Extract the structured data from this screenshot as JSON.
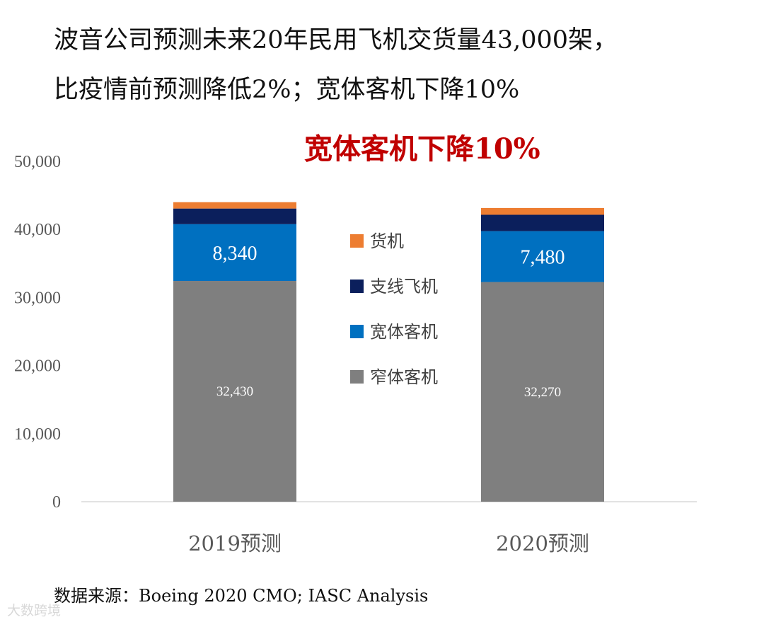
{
  "headline": {
    "line1": "波音公司预测未来20年民用飞机交货量43,000架，",
    "line2": "比疫情前预测降低2%；宽体客机下降10%"
  },
  "source": "数据来源：Boeing 2020 CMO; IASC Analysis",
  "watermark": "大数跨境",
  "chart_data": {
    "type": "bar",
    "stacked": true,
    "annotation": "宽体客机下降10%",
    "categories": [
      "2019预测",
      "2020预测"
    ],
    "ylim": [
      0,
      50000
    ],
    "yticks": [
      0,
      10000,
      20000,
      30000,
      40000,
      50000
    ],
    "ytick_labels": [
      "0",
      "10,000",
      "20,000",
      "30,000",
      "40,000",
      "50,000"
    ],
    "grid": false,
    "legend_position": "center",
    "series": [
      {
        "name": "窄体客机",
        "values": [
          32430,
          32270
        ],
        "labels": [
          "32,430",
          "32,270"
        ],
        "color": "#7f7f7f",
        "label_color": "#ffffff"
      },
      {
        "name": "宽体客机",
        "values": [
          8340,
          7480
        ],
        "labels": [
          "8,340",
          "7,480"
        ],
        "color": "#0070c0",
        "label_color": "#ffffff"
      },
      {
        "name": "支线飞机",
        "values": [
          2300,
          2400
        ],
        "labels": [
          "",
          ""
        ],
        "color": "#0b1f5c",
        "label_color": "#ffffff"
      },
      {
        "name": "货机",
        "values": [
          930,
          1000
        ],
        "labels": [
          "",
          ""
        ],
        "color": "#ed7d31",
        "label_color": "#ffffff"
      }
    ],
    "annotation_color": "#c00000"
  }
}
